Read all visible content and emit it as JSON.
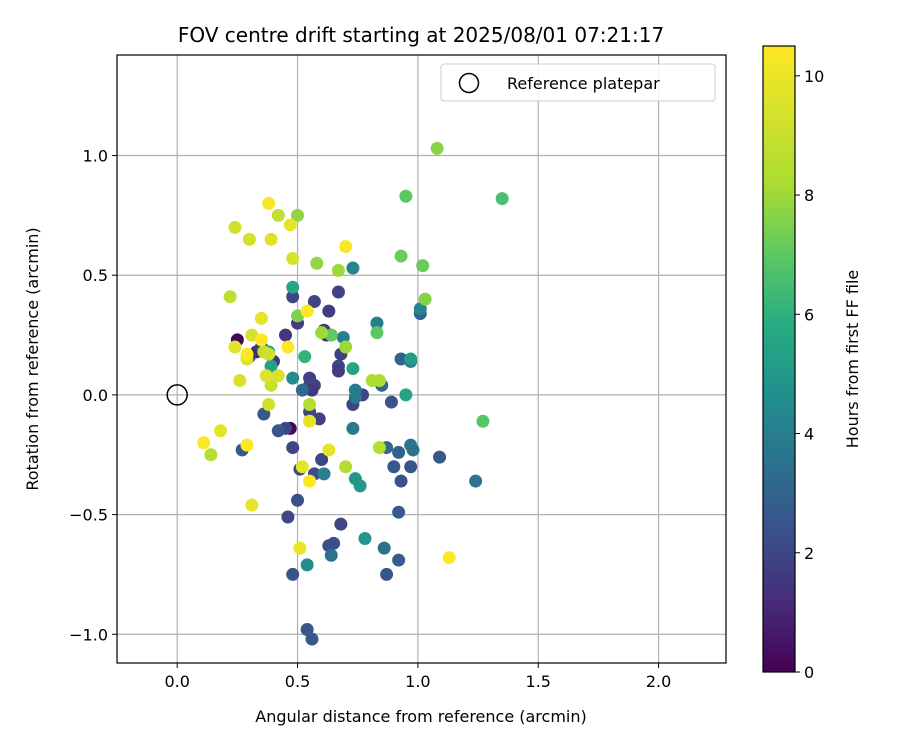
{
  "chart_data": {
    "type": "scatter",
    "title": "FOV centre drift starting at 2025/08/01 07:21:17",
    "xlabel": "Angular distance from reference (arcmin)",
    "ylabel": "Rotation from reference (arcmin)",
    "xlim": [
      -0.25,
      2.28
    ],
    "ylim": [
      -1.12,
      1.42
    ],
    "xticks": [
      0.0,
      0.5,
      1.0,
      1.5,
      2.0
    ],
    "xtick_labels": [
      "0.0",
      "0.5",
      "1.0",
      "1.5",
      "2.0"
    ],
    "yticks": [
      -1.0,
      -0.5,
      0.0,
      0.5,
      1.0
    ],
    "ytick_labels": [
      "−1.0",
      "−0.5",
      "0.0",
      "0.5",
      "1.0"
    ],
    "grid": true,
    "legend": {
      "location": "top-right",
      "label": "Reference platepar"
    },
    "reference_point": {
      "x": 0.0,
      "y": 0.0
    },
    "colorbar": {
      "label": "Hours from first FF file",
      "range": [
        0,
        10.5
      ],
      "ticks": [
        0,
        2,
        4,
        6,
        8,
        10
      ],
      "tick_labels": [
        "0",
        "2",
        "4",
        "6",
        "8",
        "10"
      ],
      "colormap": "viridis"
    },
    "points": [
      {
        "x": 0.25,
        "y": 0.23,
        "h": 0.1
      },
      {
        "x": 0.47,
        "y": -0.14,
        "h": 0.2
      },
      {
        "x": 0.62,
        "y": 0.25,
        "h": 1.0
      },
      {
        "x": 0.33,
        "y": 0.18,
        "h": 1.0
      },
      {
        "x": 0.35,
        "y": 0.2,
        "h": 1.5
      },
      {
        "x": 0.45,
        "y": 0.25,
        "h": 1.5
      },
      {
        "x": 0.5,
        "y": 0.3,
        "h": 1.6
      },
      {
        "x": 0.3,
        "y": 0.16,
        "h": 1.6
      },
      {
        "x": 0.4,
        "y": 0.14,
        "h": 1.5
      },
      {
        "x": 0.48,
        "y": 0.41,
        "h": 2.0
      },
      {
        "x": 0.57,
        "y": 0.39,
        "h": 2.0
      },
      {
        "x": 0.67,
        "y": 0.43,
        "h": 1.8
      },
      {
        "x": 0.63,
        "y": 0.35,
        "h": 1.7
      },
      {
        "x": 0.68,
        "y": 0.17,
        "h": 1.8
      },
      {
        "x": 0.67,
        "y": 0.12,
        "h": 2.0
      },
      {
        "x": 0.67,
        "y": 0.1,
        "h": 1.7
      },
      {
        "x": 0.55,
        "y": 0.07,
        "h": 1.8
      },
      {
        "x": 0.55,
        "y": 0.04,
        "h": 2.0
      },
      {
        "x": 0.57,
        "y": 0.04,
        "h": 1.9
      },
      {
        "x": 0.56,
        "y": 0.02,
        "h": 1.5
      },
      {
        "x": 0.59,
        "y": -0.1,
        "h": 1.8
      },
      {
        "x": 0.55,
        "y": -0.07,
        "h": 2.0
      },
      {
        "x": 0.61,
        "y": 0.27,
        "h": 1.5
      },
      {
        "x": 0.73,
        "y": -0.04,
        "h": 2.0
      },
      {
        "x": 0.77,
        "y": 0.0,
        "h": 2.0
      },
      {
        "x": 0.45,
        "y": -0.14,
        "h": 2.0
      },
      {
        "x": 0.48,
        "y": -0.22,
        "h": 2.0
      },
      {
        "x": 0.6,
        "y": -0.27,
        "h": 2.0
      },
      {
        "x": 0.51,
        "y": -0.31,
        "h": 2.3
      },
      {
        "x": 0.57,
        "y": -0.33,
        "h": 2.2
      },
      {
        "x": 0.5,
        "y": -0.44,
        "h": 2.3
      },
      {
        "x": 0.46,
        "y": -0.51,
        "h": 2.0
      },
      {
        "x": 0.68,
        "y": -0.54,
        "h": 2.0
      },
      {
        "x": 0.63,
        "y": -0.63,
        "h": 2.2
      },
      {
        "x": 0.65,
        "y": -0.62,
        "h": 2.3
      },
      {
        "x": 0.48,
        "y": -0.75,
        "h": 2.4
      },
      {
        "x": 0.54,
        "y": -0.98,
        "h": 2.6
      },
      {
        "x": 0.56,
        "y": -1.02,
        "h": 2.6
      },
      {
        "x": 0.27,
        "y": -0.23,
        "h": 2.6
      },
      {
        "x": 0.36,
        "y": -0.08,
        "h": 2.6
      },
      {
        "x": 0.42,
        "y": -0.15,
        "h": 2.5
      },
      {
        "x": 0.89,
        "y": -0.03,
        "h": 2.4
      },
      {
        "x": 0.93,
        "y": -0.36,
        "h": 2.3
      },
      {
        "x": 0.9,
        "y": -0.3,
        "h": 2.6
      },
      {
        "x": 0.92,
        "y": -0.49,
        "h": 2.8
      },
      {
        "x": 0.92,
        "y": -0.69,
        "h": 2.8
      },
      {
        "x": 0.87,
        "y": -0.75,
        "h": 2.5
      },
      {
        "x": 0.97,
        "y": -0.3,
        "h": 2.5
      },
      {
        "x": 1.09,
        "y": -0.26,
        "h": 2.6
      },
      {
        "x": 1.01,
        "y": 0.34,
        "h": 3.0
      },
      {
        "x": 0.93,
        "y": 0.15,
        "h": 3.0
      },
      {
        "x": 0.92,
        "y": -0.24,
        "h": 3.0
      },
      {
        "x": 0.85,
        "y": 0.04,
        "h": 3.2
      },
      {
        "x": 0.87,
        "y": -0.22,
        "h": 3.2
      },
      {
        "x": 0.52,
        "y": 0.02,
        "h": 3.2
      },
      {
        "x": 0.64,
        "y": -0.67,
        "h": 3.5
      },
      {
        "x": 0.86,
        "y": -0.64,
        "h": 3.5
      },
      {
        "x": 0.97,
        "y": 0.14,
        "h": 3.6
      },
      {
        "x": 0.97,
        "y": -0.21,
        "h": 3.6
      },
      {
        "x": 0.98,
        "y": -0.23,
        "h": 3.6
      },
      {
        "x": 1.24,
        "y": -0.36,
        "h": 3.6
      },
      {
        "x": 0.73,
        "y": -0.14,
        "h": 3.8
      },
      {
        "x": 0.74,
        "y": 0.02,
        "h": 3.8
      },
      {
        "x": 0.74,
        "y": -0.01,
        "h": 3.8
      },
      {
        "x": 0.69,
        "y": 0.24,
        "h": 4.0
      },
      {
        "x": 0.61,
        "y": -0.33,
        "h": 4.0
      },
      {
        "x": 0.64,
        "y": 0.25,
        "h": 4.0
      },
      {
        "x": 0.83,
        "y": 0.3,
        "h": 4.0
      },
      {
        "x": 1.01,
        "y": 0.36,
        "h": 4.2
      },
      {
        "x": 0.73,
        "y": 0.53,
        "h": 4.3
      },
      {
        "x": 0.48,
        "y": 0.07,
        "h": 4.5
      },
      {
        "x": 0.54,
        "y": -0.71,
        "h": 4.5
      },
      {
        "x": 0.78,
        "y": -0.6,
        "h": 5.0
      },
      {
        "x": 0.74,
        "y": -0.35,
        "h": 5.0
      },
      {
        "x": 0.76,
        "y": -0.38,
        "h": 5.0
      },
      {
        "x": 0.97,
        "y": 0.15,
        "h": 5.2
      },
      {
        "x": 0.48,
        "y": 0.45,
        "h": 5.5
      },
      {
        "x": 0.73,
        "y": 0.11,
        "h": 5.5
      },
      {
        "x": 0.95,
        "y": 0.0,
        "h": 5.5
      },
      {
        "x": 0.39,
        "y": 0.12,
        "h": 5.3
      },
      {
        "x": 0.38,
        "y": 0.18,
        "h": 5.6
      },
      {
        "x": 0.53,
        "y": 0.16,
        "h": 6.1
      },
      {
        "x": 1.35,
        "y": 0.82,
        "h": 6.6
      },
      {
        "x": 1.27,
        "y": -0.11,
        "h": 6.9
      },
      {
        "x": 0.95,
        "y": 0.83,
        "h": 7.0
      },
      {
        "x": 0.83,
        "y": 0.26,
        "h": 7.0
      },
      {
        "x": 0.64,
        "y": 0.25,
        "h": 7.1
      },
      {
        "x": 0.93,
        "y": 0.58,
        "h": 7.2
      },
      {
        "x": 1.02,
        "y": 0.54,
        "h": 7.2
      },
      {
        "x": 1.03,
        "y": 0.4,
        "h": 7.6
      },
      {
        "x": 1.08,
        "y": 1.03,
        "h": 7.7
      },
      {
        "x": 0.5,
        "y": 0.33,
        "h": 7.5
      },
      {
        "x": 0.58,
        "y": 0.55,
        "h": 7.8
      },
      {
        "x": 0.5,
        "y": 0.75,
        "h": 7.8
      },
      {
        "x": 0.67,
        "y": 0.52,
        "h": 8.0
      },
      {
        "x": 0.7,
        "y": 0.2,
        "h": 8.0
      },
      {
        "x": 0.6,
        "y": 0.26,
        "h": 8.0
      },
      {
        "x": 0.81,
        "y": 0.06,
        "h": 8.2
      },
      {
        "x": 0.84,
        "y": 0.06,
        "h": 8.3
      },
      {
        "x": 0.84,
        "y": -0.22,
        "h": 8.5
      },
      {
        "x": 0.7,
        "y": -0.3,
        "h": 8.4
      },
      {
        "x": 0.55,
        "y": -0.04,
        "h": 8.5
      },
      {
        "x": 0.14,
        "y": -0.25,
        "h": 8.5
      },
      {
        "x": 0.22,
        "y": 0.41,
        "h": 8.7
      },
      {
        "x": 0.42,
        "y": 0.75,
        "h": 8.8
      },
      {
        "x": 0.36,
        "y": 0.18,
        "h": 8.8
      },
      {
        "x": 0.38,
        "y": 0.17,
        "h": 9.2
      },
      {
        "x": 0.39,
        "y": 0.04,
        "h": 9.0
      },
      {
        "x": 0.38,
        "y": -0.04,
        "h": 9.3
      },
      {
        "x": 0.3,
        "y": 0.65,
        "h": 9.3
      },
      {
        "x": 0.24,
        "y": 0.7,
        "h": 9.3
      },
      {
        "x": 0.39,
        "y": 0.65,
        "h": 9.6
      },
      {
        "x": 0.48,
        "y": 0.57,
        "h": 9.4
      },
      {
        "x": 0.47,
        "y": 0.71,
        "h": 9.8
      },
      {
        "x": 0.37,
        "y": 0.08,
        "h": 9.6
      },
      {
        "x": 0.42,
        "y": 0.08,
        "h": 9.5
      },
      {
        "x": 0.31,
        "y": 0.25,
        "h": 9.5
      },
      {
        "x": 0.29,
        "y": 0.15,
        "h": 9.6
      },
      {
        "x": 0.26,
        "y": 0.06,
        "h": 9.5
      },
      {
        "x": 0.24,
        "y": 0.2,
        "h": 9.7
      },
      {
        "x": 0.35,
        "y": 0.32,
        "h": 9.8
      },
      {
        "x": 0.55,
        "y": -0.11,
        "h": 9.8
      },
      {
        "x": 0.52,
        "y": -0.3,
        "h": 9.8
      },
      {
        "x": 0.63,
        "y": -0.23,
        "h": 9.8
      },
      {
        "x": 0.18,
        "y": -0.15,
        "h": 9.8
      },
      {
        "x": 0.31,
        "y": -0.46,
        "h": 9.8
      },
      {
        "x": 0.51,
        "y": -0.64,
        "h": 10.0
      },
      {
        "x": 0.38,
        "y": 0.8,
        "h": 10.4
      },
      {
        "x": 0.7,
        "y": 0.62,
        "h": 10.4
      },
      {
        "x": 0.54,
        "y": 0.35,
        "h": 10.5
      },
      {
        "x": 0.46,
        "y": 0.2,
        "h": 10.5
      },
      {
        "x": 0.35,
        "y": 0.23,
        "h": 10.5
      },
      {
        "x": 0.29,
        "y": 0.17,
        "h": 10.5
      },
      {
        "x": 0.11,
        "y": -0.2,
        "h": 10.5
      },
      {
        "x": 0.29,
        "y": -0.21,
        "h": 10.5
      },
      {
        "x": 0.55,
        "y": -0.36,
        "h": 10.5
      },
      {
        "x": 1.13,
        "y": -0.68,
        "h": 10.5
      }
    ]
  }
}
